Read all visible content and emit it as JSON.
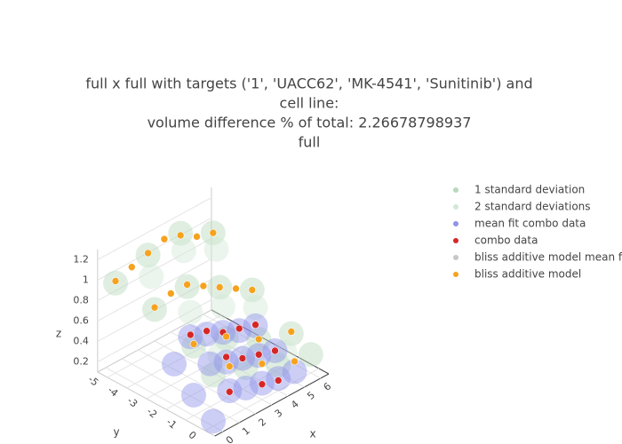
{
  "chart_data": {
    "type": "scatter3d",
    "title": [
      "full x full with targets ('1', 'UACC62', 'MK-4541', 'Sunitinib') and",
      "cell line:",
      "volume difference % of total: 2.26678798937",
      "full"
    ],
    "xlabel": "x",
    "ylabel": "y",
    "zlabel": "z",
    "xlim": [
      -0.5,
      6.5
    ],
    "ylim": [
      -5.5,
      0.5
    ],
    "zlim": [
      0.1,
      1.3
    ],
    "xticks": [
      0,
      1,
      2,
      3,
      4,
      5,
      6
    ],
    "yticks": [
      -5,
      -4,
      -3,
      -2,
      -1,
      0
    ],
    "zticks": [
      0.2,
      0.4,
      0.6,
      0.8,
      1,
      1.2
    ],
    "series": [
      {
        "name": "1 standard deviation",
        "color": "#b7d9bd",
        "x": [
          0,
          2,
          4,
          6,
          0,
          2,
          4,
          6,
          0,
          2,
          4,
          6,
          0,
          2,
          4,
          6
        ],
        "y": [
          -5,
          -5,
          -5,
          -5,
          -3,
          -3,
          -3,
          -3,
          -1,
          -1,
          -1,
          -1,
          0,
          0,
          0,
          0
        ],
        "z": [
          0.98,
          1.08,
          1.12,
          0.95,
          0.93,
          0.98,
          0.8,
          0.6,
          0.78,
          0.68,
          0.5,
          0.38,
          0.6,
          0.5,
          0.35,
          0.28
        ]
      },
      {
        "name": "2 standard deviations",
        "color": "#d3e8d6",
        "x": [
          1,
          3,
          5,
          1,
          3,
          5,
          1,
          3,
          5
        ],
        "y": [
          -4,
          -4,
          -4,
          -2,
          -2,
          -2,
          -0.5,
          -0.5,
          -0.5
        ],
        "z": [
          1.06,
          1.14,
          0.98,
          0.92,
          0.8,
          0.62,
          0.66,
          0.48,
          0.34
        ]
      },
      {
        "name": "mean fit combo data",
        "color": "#8f93e8",
        "x": [
          1,
          2,
          3,
          4,
          5,
          1,
          2,
          3,
          4,
          5,
          1,
          2,
          3,
          4,
          5,
          0,
          0,
          0
        ],
        "y": [
          -2,
          -2,
          -2,
          -2,
          -2,
          -1,
          -1,
          -1,
          -1,
          -1,
          0,
          0,
          0,
          0,
          0,
          -1,
          0,
          -2
        ],
        "z": [
          0.68,
          0.62,
          0.55,
          0.48,
          0.44,
          0.52,
          0.45,
          0.4,
          0.34,
          0.3,
          0.36,
          0.3,
          0.26,
          0.22,
          0.2,
          0.3,
          0.15,
          0.5
        ]
      },
      {
        "name": "combo data",
        "color": "#d62728",
        "x": [
          1,
          2,
          3,
          4,
          5,
          2,
          3,
          4,
          5,
          1,
          3,
          4
        ],
        "y": [
          -2,
          -2,
          -2,
          -2,
          -2,
          -1,
          -1,
          -1,
          -1,
          0,
          0,
          0
        ],
        "z": [
          0.7,
          0.65,
          0.55,
          0.5,
          0.45,
          0.5,
          0.4,
          0.35,
          0.3,
          0.35,
          0.25,
          0.2
        ]
      },
      {
        "name": "bliss additive model mean fit",
        "color": "#c7c7c7",
        "x": [],
        "y": [],
        "z": []
      },
      {
        "name": "bliss additive model",
        "color": "#f5a31f",
        "x": [
          0,
          1,
          2,
          3,
          4,
          5,
          6,
          0,
          1,
          2,
          3,
          4,
          5,
          6,
          0,
          2,
          4,
          6,
          1,
          3,
          5
        ],
        "y": [
          -5,
          -5,
          -5,
          -5,
          -5,
          -5,
          -5,
          -3,
          -3,
          -3,
          -3,
          -3,
          -3,
          -3,
          -1,
          -1,
          -1,
          -1,
          0,
          0,
          0
        ],
        "z": [
          1.0,
          1.05,
          1.1,
          1.15,
          1.1,
          1.0,
          0.95,
          0.95,
          1.0,
          1.0,
          0.9,
          0.8,
          0.7,
          0.6,
          0.8,
          0.7,
          0.5,
          0.4,
          0.6,
          0.45,
          0.3
        ]
      }
    ]
  }
}
